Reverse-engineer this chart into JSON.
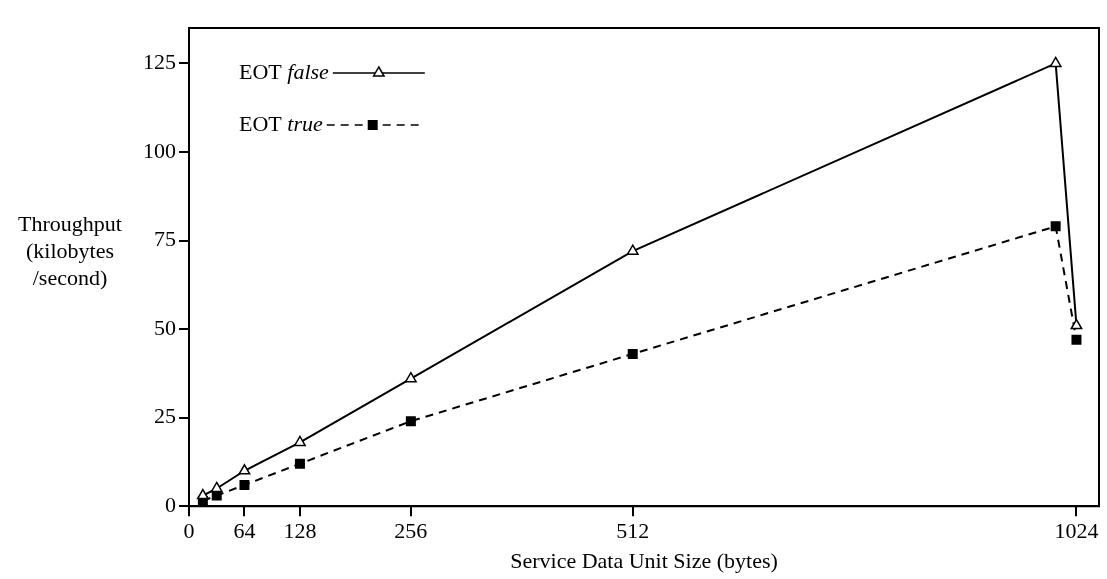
{
  "chart_data": {
    "type": "line",
    "xlabel": "Service Data Unit Size (bytes)",
    "ylabel": "Throughput (kilobytes /second)",
    "x": [
      16,
      32,
      64,
      128,
      256,
      512,
      1000,
      1024
    ],
    "series": [
      {
        "name": "EOT false",
        "color": "#000000",
        "marker": "triangle",
        "line_style": "solid",
        "values": [
          3,
          5,
          10,
          18,
          36,
          72,
          125,
          51
        ]
      },
      {
        "name": "EOT true",
        "color": "#000000",
        "marker": "square",
        "line_style": "dashed",
        "values": [
          1.5,
          3,
          6,
          12,
          24,
          43,
          79,
          47
        ]
      }
    ],
    "xlim": [
      0,
      1050
    ],
    "xticks": [
      0,
      64,
      128,
      256,
      512,
      1024
    ],
    "ylim": [
      0,
      135
    ],
    "yticks": [
      0,
      25,
      50,
      75,
      100,
      125
    ],
    "grid": false,
    "legend": "top left"
  }
}
